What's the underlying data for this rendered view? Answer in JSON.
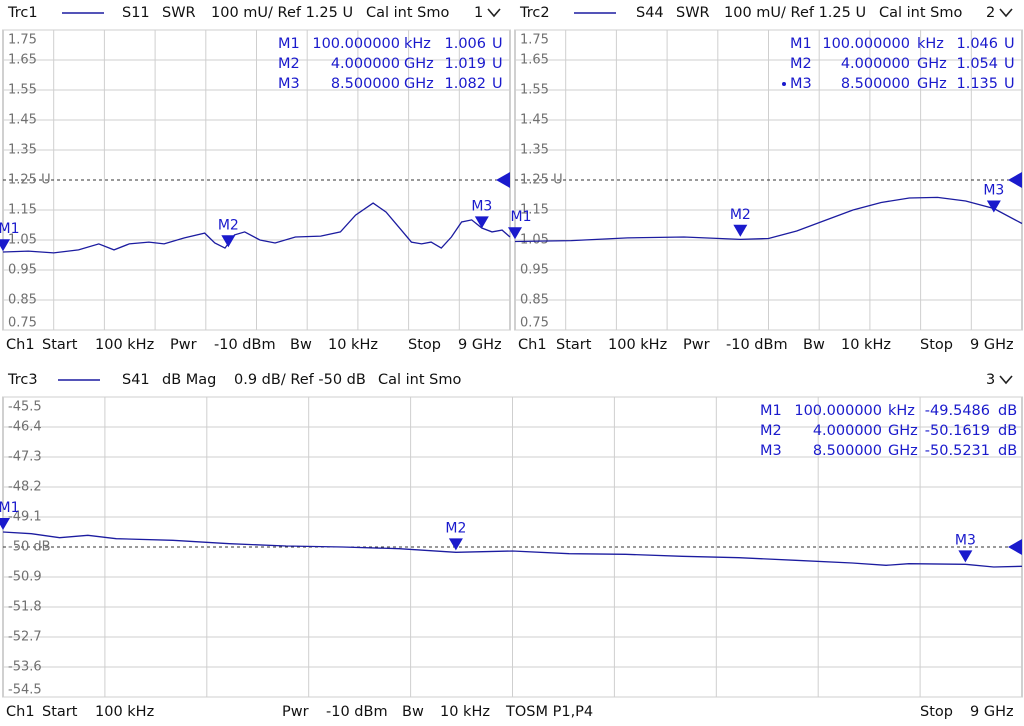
{
  "chart_data": [
    {
      "type": "line",
      "header": [
        "Trc1",
        "S11",
        "SWR",
        "100 mU/ Ref 1.25 U",
        "Cal int Smo",
        "1"
      ],
      "footer": [
        "Ch1",
        "Start",
        "100 kHz",
        "Pwr",
        "-10 dBm",
        "Bw",
        "10 kHz",
        "Stop",
        "9 GHz"
      ],
      "xlim": [
        0.0001,
        9
      ],
      "ylim": [
        0.75,
        1.75
      ],
      "yticks": [
        1.75,
        1.65,
        1.55,
        1.45,
        1.35,
        {
          "value": 1.25,
          "label": "1.25 U"
        },
        1.15,
        1.05,
        0.95,
        0.85,
        0.75
      ],
      "x": [
        0.0001,
        0.45,
        0.9,
        1.34,
        1.7,
        1.97,
        2.24,
        2.59,
        2.86,
        3.22,
        3.58,
        3.76,
        3.94,
        4.11,
        4.29,
        4.56,
        4.83,
        5.19,
        5.64,
        5.99,
        6.26,
        6.57,
        6.8,
        7.07,
        7.25,
        7.43,
        7.6,
        7.78,
        7.96,
        8.14,
        8.32,
        8.5,
        8.68,
        8.86,
        9.0
      ],
      "series": [
        {
          "color": "#1c1ca0",
          "values": [
            1.01,
            1.013,
            1.007,
            1.017,
            1.037,
            1.017,
            1.037,
            1.043,
            1.037,
            1.057,
            1.073,
            1.04,
            1.023,
            1.067,
            1.077,
            1.05,
            1.04,
            1.06,
            1.063,
            1.077,
            1.133,
            1.173,
            1.143,
            1.083,
            1.043,
            1.037,
            1.043,
            1.023,
            1.06,
            1.11,
            1.117,
            1.09,
            1.077,
            1.083,
            1.06
          ]
        }
      ],
      "markers": [
        {
          "name": "M1",
          "x": 0.0001,
          "stimulus": "100.000000",
          "stimulus_unit": "kHz",
          "value": 1.006,
          "unit": "U"
        },
        {
          "name": "M2",
          "x": 4,
          "stimulus": "4.000000",
          "stimulus_unit": "GHz",
          "value": 1.019,
          "unit": "U"
        },
        {
          "name": "M3",
          "x": 8.5,
          "stimulus": "8.500000",
          "stimulus_unit": "GHz",
          "value": 1.082,
          "unit": "U"
        }
      ]
    },
    {
      "type": "line",
      "header": [
        "Trc2",
        "S44",
        "SWR",
        "100 mU/ Ref 1.25 U",
        "Cal int Smo",
        "2"
      ],
      "footer": [
        "Ch1",
        "Start",
        "100 kHz",
        "Pwr",
        "-10 dBm",
        "Bw",
        "10 kHz",
        "Stop",
        "9 GHz"
      ],
      "xlim": [
        0.0001,
        9
      ],
      "ylim": [
        0.75,
        1.75
      ],
      "yticks": [
        1.75,
        1.65,
        1.55,
        1.45,
        1.35,
        {
          "value": 1.25,
          "label": "1.25 U"
        },
        1.15,
        1.05,
        0.95,
        0.85,
        0.75
      ],
      "x": [
        0.0001,
        1,
        2,
        3,
        4,
        4.5,
        5,
        5.5,
        6,
        6.5,
        7,
        7.5,
        8,
        8.5,
        9
      ],
      "series": [
        {
          "color": "#1c1ca0",
          "values": [
            1.045,
            1.048,
            1.057,
            1.06,
            1.052,
            1.055,
            1.08,
            1.115,
            1.15,
            1.175,
            1.19,
            1.192,
            1.18,
            1.155,
            1.105
          ]
        }
      ],
      "markers": [
        {
          "name": "M1",
          "x": 0.0001,
          "stimulus": "100.000000",
          "stimulus_unit": "kHz",
          "value": 1.046,
          "unit": "U"
        },
        {
          "name": "M2",
          "x": 4,
          "stimulus": "4.000000",
          "stimulus_unit": "GHz",
          "value": 1.054,
          "unit": "U"
        },
        {
          "name": "M3",
          "x": 8.5,
          "stimulus": "8.500000",
          "stimulus_unit": "GHz",
          "value": 1.135,
          "unit": "U"
        }
      ]
    },
    {
      "type": "line",
      "header": [
        "Trc3",
        "S41",
        "dB Mag",
        "0.9 dB/ Ref -50 dB",
        "Cal int Smo",
        "3"
      ],
      "footer": [
        "Ch1",
        "Start",
        "100 kHz",
        "Pwr",
        "-10 dBm",
        "Bw",
        "10 kHz",
        "TOSM P1,P4",
        "Stop",
        "9 GHz"
      ],
      "xlim": [
        0.0001,
        9
      ],
      "ylim": [
        -54.5,
        -45.5
      ],
      "yticks": [
        -45.5,
        -46.4,
        -47.3,
        -48.2,
        -49.1,
        {
          "value": -50,
          "label": "-50 dB"
        },
        -50.9,
        -51.8,
        -52.7,
        -53.6,
        -54.5
      ],
      "x": [
        0.0001,
        0.25,
        0.5,
        0.75,
        1,
        1.5,
        2,
        2.5,
        3,
        3.5,
        4,
        4.5,
        5,
        5.5,
        6,
        6.5,
        7,
        7.5,
        7.8,
        8,
        8.5,
        8.75,
        9
      ],
      "series": [
        {
          "color": "#1c1ca0",
          "values": [
            -49.55,
            -49.6,
            -49.72,
            -49.65,
            -49.75,
            -49.8,
            -49.9,
            -49.97,
            -50.0,
            -50.05,
            -50.16,
            -50.12,
            -50.2,
            -50.22,
            -50.28,
            -50.32,
            -50.4,
            -50.48,
            -50.55,
            -50.5,
            -50.52,
            -50.6,
            -50.58
          ]
        }
      ],
      "markers": [
        {
          "name": "M1",
          "x": 0.0001,
          "stimulus": "100.000000",
          "stimulus_unit": "kHz",
          "value": -49.5486,
          "unit": "dB"
        },
        {
          "name": "M2",
          "x": 4,
          "stimulus": "4.000000",
          "stimulus_unit": "GHz",
          "value": -50.1619,
          "unit": "dB"
        },
        {
          "name": "M3",
          "x": 8.5,
          "stimulus": "8.500000",
          "stimulus_unit": "GHz",
          "value": -50.5231,
          "unit": "dB"
        }
      ]
    }
  ]
}
